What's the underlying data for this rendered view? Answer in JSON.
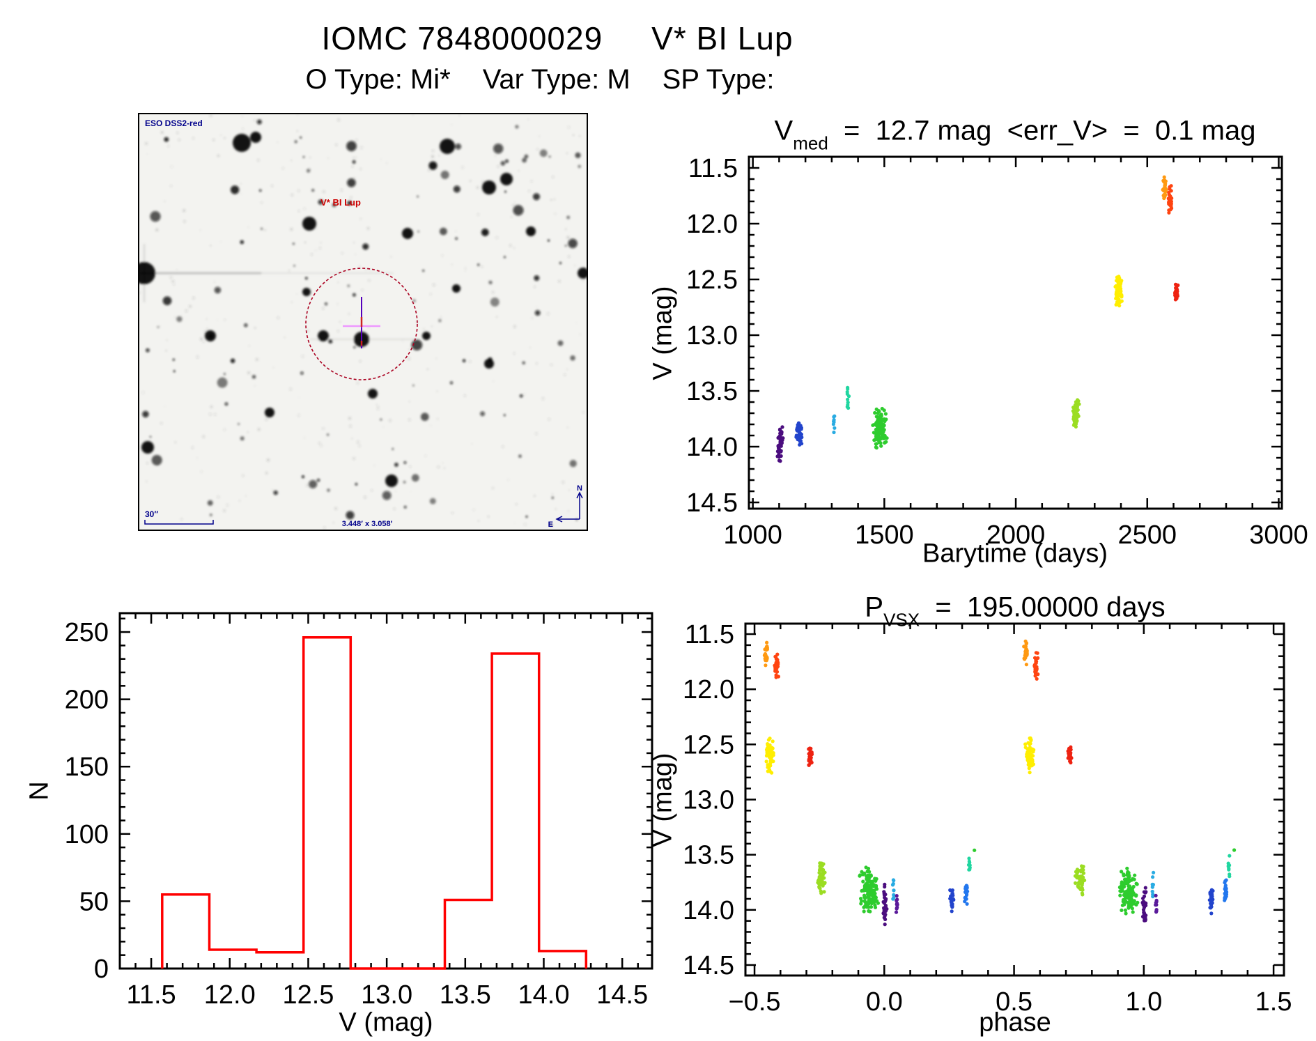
{
  "page": {
    "title_left": "IOMC 7848000029",
    "title_right": "V* BI Lup",
    "subtitle_o": "O Type: Mi*",
    "subtitle_var": "Var Type: M",
    "subtitle_sp": "SP Type:"
  },
  "finder": {
    "survey_label": "ESO DSS2-red",
    "target_label": "V* BI Lup",
    "scale_label": "30″",
    "fov_label": "3.448′ x 3.058′",
    "compass_n": "N",
    "compass_e": "E",
    "accent_navy": "#00008b",
    "accent_red": "#cc0000",
    "circle_color": "#aa0020"
  },
  "chart_data": [
    {
      "id": "lightcurve",
      "type": "scatter",
      "title": "V_med = 12.7 mag <err_V> = 0.1 mag",
      "title_pre": "V",
      "title_sub": "med",
      "title_post": "  =  12.7 mag  <err_V>  =  0.1 mag",
      "xlabel": "Barytime (days)",
      "ylabel": "V (mag)",
      "xlim": [
        985,
        3012
      ],
      "ylim_top_bottom": [
        11.4,
        14.556
      ],
      "xticks": [
        "1000",
        "1500",
        "2000",
        "2500",
        "3000"
      ],
      "yticks": [
        "11.5",
        "12.0",
        "12.5",
        "13.0",
        "13.5",
        "14.0",
        "14.5"
      ],
      "xminor": 100,
      "yminor": 0.1,
      "y_inverted": true,
      "grid": false,
      "clusters": [
        {
          "name": "epoch-1",
          "color": "#4b0d7f",
          "t": 1104,
          "v": [
            13.78,
            14.15
          ],
          "n": 50,
          "w": 12
        },
        {
          "name": "epoch-2",
          "color": "#2244cc",
          "t": 1176,
          "v": [
            13.74,
            14.02
          ],
          "n": 45,
          "w": 12
        },
        {
          "name": "epoch-3",
          "color": "#29abe2",
          "t": 1308,
          "v": [
            13.62,
            13.9
          ],
          "n": 8,
          "w": 4
        },
        {
          "name": "epoch-4",
          "color": "#20d6a0",
          "t": 1362,
          "v": [
            13.44,
            13.73
          ],
          "n": 10,
          "w": 5
        },
        {
          "name": "epoch-5",
          "color": "#2ecc2e",
          "t": 1482,
          "v": [
            13.61,
            14.06
          ],
          "n": 120,
          "w": 30
        },
        {
          "name": "epoch-6",
          "color": "#9bdd22",
          "t": 2228,
          "v": [
            13.55,
            13.87
          ],
          "n": 55,
          "w": 14
        },
        {
          "name": "epoch-7",
          "color": "#ffee00",
          "t": 2392,
          "v": [
            12.42,
            12.77
          ],
          "n": 60,
          "w": 14
        },
        {
          "name": "epoch-8",
          "color": "#ff9911",
          "t": 2566,
          "v": [
            11.54,
            11.8
          ],
          "n": 28,
          "w": 8
        },
        {
          "name": "epoch-9",
          "color": "#ff4411",
          "t": 2586,
          "v": [
            11.64,
            11.92
          ],
          "n": 32,
          "w": 8
        },
        {
          "name": "epoch-10",
          "color": "#ee2211",
          "t": 2610,
          "v": [
            12.53,
            12.71
          ],
          "n": 30,
          "w": 8
        }
      ]
    },
    {
      "id": "histogram",
      "type": "bar",
      "xlabel": "V (mag)",
      "ylabel": "N",
      "xlim": [
        11.3,
        14.69
      ],
      "ylim": [
        0,
        264
      ],
      "xticks": [
        "11.5",
        "12.0",
        "12.5",
        "13.0",
        "13.5",
        "14.0",
        "14.5"
      ],
      "yticks": [
        "0",
        "50",
        "100",
        "150",
        "200",
        "250"
      ],
      "xminor": 0.1,
      "yminor": 10,
      "bar_color": "#ff0000",
      "bins": [
        {
          "x0": 11.57,
          "x1": 11.87,
          "n": 55
        },
        {
          "x0": 11.87,
          "x1": 12.17,
          "n": 14
        },
        {
          "x0": 12.17,
          "x1": 12.47,
          "n": 12
        },
        {
          "x0": 12.47,
          "x1": 12.77,
          "n": 246
        },
        {
          "x0": 12.77,
          "x1": 13.07,
          "n": 0
        },
        {
          "x0": 13.07,
          "x1": 13.37,
          "n": 0
        },
        {
          "x0": 13.37,
          "x1": 13.67,
          "n": 51
        },
        {
          "x0": 13.67,
          "x1": 13.97,
          "n": 234
        },
        {
          "x0": 13.97,
          "x1": 14.27,
          "n": 13
        }
      ]
    },
    {
      "id": "phased",
      "type": "scatter",
      "title": "P_VSX = 195.00000 days",
      "title_pre": "P",
      "title_sub": "VSX",
      "title_post": "  =  195.00000 days",
      "xlabel": "phase",
      "ylabel": "V (mag)",
      "xlim": [
        -0.535,
        1.54
      ],
      "ylim_top_bottom": [
        11.405,
        14.595
      ],
      "xticks": [
        "−0.5",
        "0.0",
        "0.5",
        "1.0",
        "1.5"
      ],
      "xtick_values": [
        -0.5,
        0.0,
        0.5,
        1.0,
        1.5
      ],
      "yticks": [
        "11.5",
        "12.0",
        "12.5",
        "13.0",
        "13.5",
        "14.0",
        "14.5"
      ],
      "xminor": 0.1,
      "yminor": 0.1,
      "y_inverted": true,
      "duplicate_offset": 1.0,
      "clusters": [
        {
          "name": "epoch-8",
          "color": "#ff9911",
          "p": -0.455,
          "v": [
            11.54,
            11.8
          ],
          "n": 24,
          "w": 0.008
        },
        {
          "name": "epoch-9",
          "color": "#ff4411",
          "p": -0.415,
          "v": [
            11.64,
            11.92
          ],
          "n": 28,
          "w": 0.008
        },
        {
          "name": "epoch-7",
          "color": "#ffee00",
          "p": -0.44,
          "v": [
            12.42,
            12.77
          ],
          "n": 60,
          "w": 0.02
        },
        {
          "name": "epoch-10",
          "color": "#ee2211",
          "p": -0.285,
          "v": [
            12.5,
            12.71
          ],
          "n": 28,
          "w": 0.008
        },
        {
          "name": "epoch-6",
          "color": "#9bdd22",
          "p": -0.245,
          "v": [
            13.55,
            13.87
          ],
          "n": 55,
          "w": 0.022
        },
        {
          "name": "epoch-5",
          "color": "#2ecc2e",
          "p": -0.06,
          "v": [
            13.61,
            14.06
          ],
          "n": 120,
          "w": 0.038
        },
        {
          "name": "epoch-1a",
          "color": "#4b0d7f",
          "p": 0.002,
          "v": [
            13.75,
            14.14
          ],
          "n": 35,
          "w": 0.008
        },
        {
          "name": "epoch-3",
          "color": "#29abe2",
          "p": 0.035,
          "v": [
            13.62,
            13.92
          ],
          "n": 9,
          "w": 0.003
        },
        {
          "name": "epoch-1b",
          "color": "#5a1a9a",
          "p": 0.048,
          "v": [
            13.85,
            14.06
          ],
          "n": 10,
          "w": 0.003
        },
        {
          "name": "epoch-2a",
          "color": "#2244cc",
          "p": 0.26,
          "v": [
            13.78,
            14.04
          ],
          "n": 26,
          "w": 0.008
        },
        {
          "name": "epoch-2b",
          "color": "#2277ee",
          "p": 0.315,
          "v": [
            13.7,
            13.96
          ],
          "n": 22,
          "w": 0.006
        },
        {
          "name": "epoch-4",
          "color": "#20d6a0",
          "p": 0.328,
          "v": [
            13.48,
            13.72
          ],
          "n": 9,
          "w": 0.004
        },
        {
          "name": "epoch-5b",
          "color": "#2ecc2e",
          "p": 0.348,
          "v": [
            13.455,
            13.465
          ],
          "n": 1,
          "w": 0.001
        }
      ]
    }
  ]
}
